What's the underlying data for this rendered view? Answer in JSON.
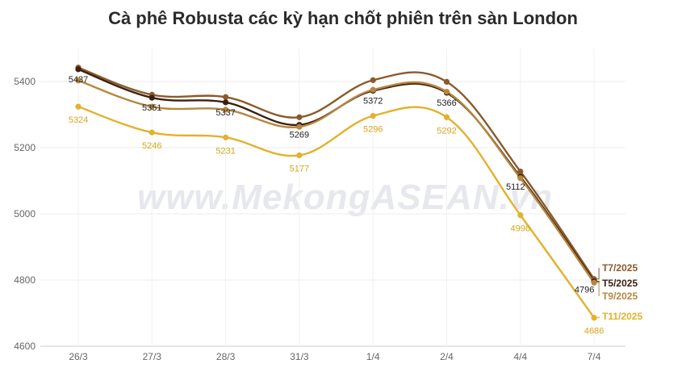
{
  "chart_data": {
    "type": "line",
    "title": "Cà phê Robusta các kỳ hạn chốt phiên trên sàn London",
    "watermark": "www.MekongASEAN.vn",
    "categories": [
      "26/3",
      "27/3",
      "28/3",
      "31/3",
      "1/4",
      "2/4",
      "4/4",
      "7/4"
    ],
    "ylim": [
      4600,
      5500
    ],
    "yticks": [
      4600,
      4800,
      5000,
      5200,
      5400
    ],
    "grid": true,
    "series": [
      {
        "name": "T7/2025",
        "color": "#8a5a2a",
        "values": [
          5442,
          5360,
          5353,
          5292,
          5404,
          5399,
          5128,
          4803
        ],
        "labels": [
          null,
          null,
          null,
          null,
          null,
          null,
          null,
          null
        ]
      },
      {
        "name": "T5/2025",
        "color": "#3d2010",
        "values": [
          5437,
          5351,
          5337,
          5269,
          5372,
          5366,
          5112,
          4796
        ],
        "labels": [
          "5437",
          "5351",
          "5337",
          "5269",
          "5372",
          "5366",
          "5112",
          "4796"
        ]
      },
      {
        "name": "T9/2025",
        "color": "#b7873f",
        "values": [
          5403,
          5324,
          5315,
          5263,
          5375,
          5369,
          5108,
          4792
        ],
        "labels": [
          null,
          null,
          null,
          null,
          null,
          null,
          null,
          null
        ]
      },
      {
        "name": "T11/2025",
        "color": "#e3b12c",
        "values": [
          5324,
          5246,
          5231,
          5177,
          5296,
          5292,
          4996,
          4686
        ],
        "labels": [
          "5324",
          "5246",
          "5231",
          "5177",
          "5296",
          "5292",
          "4996",
          "4686"
        ]
      }
    ]
  }
}
